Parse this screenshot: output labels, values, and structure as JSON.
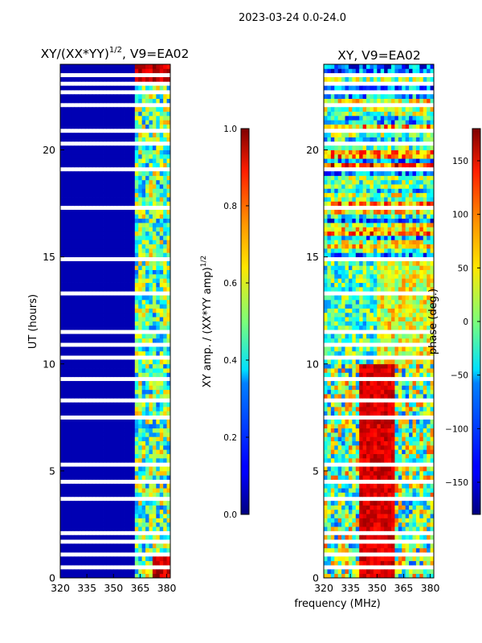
{
  "suptitle": "2023-03-24 0.0-24.0",
  "chart_data": [
    {
      "type": "heatmap",
      "title_prefix": "XY/(XX*YY)",
      "title_exponent": "1/2",
      "title_suffix": ", V9=EA02",
      "xlabel": "",
      "ylabel": "UT (hours)",
      "xlim": [
        320,
        382
      ],
      "ylim": [
        0,
        24
      ],
      "xticks": [
        320,
        335,
        350,
        365,
        380
      ],
      "yticks": [
        0,
        5,
        10,
        15,
        20
      ],
      "colorbar": {
        "label_prefix": "XY amp. / (XX*YY amp)",
        "label_exponent": "1/2",
        "range": [
          0.0,
          1.0
        ],
        "ticks": [
          "0.0",
          "0.2",
          "0.4",
          "0.6",
          "0.8",
          "1.0"
        ],
        "colormap": "jet"
      }
    },
    {
      "type": "heatmap",
      "title": "XY, V9=EA02",
      "xlabel": "frequency (MHz)",
      "ylabel": "",
      "xlim": [
        320,
        382
      ],
      "ylim": [
        0,
        24
      ],
      "xticks": [
        320,
        335,
        350,
        365,
        380
      ],
      "yticks": [
        0,
        5,
        10,
        15,
        20
      ],
      "colorbar": {
        "label": "phase (deg.)",
        "range": [
          -180,
          180
        ],
        "ticks": [
          "−150",
          "−100",
          "−50",
          "0",
          "50",
          "100",
          "150"
        ],
        "colormap": "jet"
      }
    }
  ]
}
